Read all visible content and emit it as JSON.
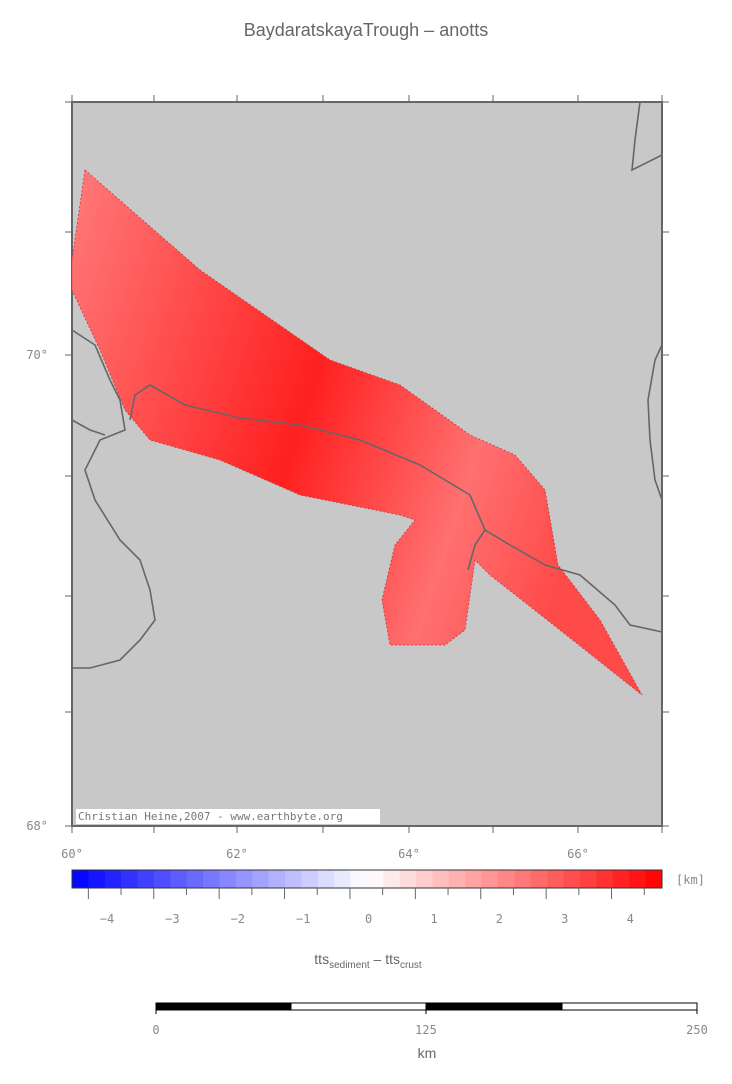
{
  "title": "BaydaratskayaTrough – anotts",
  "map": {
    "lat_labels": [
      "70°",
      "68°"
    ],
    "lon_labels": [
      "60°",
      "62°",
      "64°",
      "66°"
    ],
    "credit": "Christian Heine,2007 - www.earthbyte.org"
  },
  "colorbar": {
    "unit": "[km]",
    "tick_labels": [
      "−4",
      "−3",
      "−2",
      "−1",
      "0",
      "1",
      "2",
      "3",
      "4"
    ],
    "label": [
      {
        "text": "tts",
        "sub": "sediment"
      },
      {
        "text": " – tts",
        "sub": "crust"
      }
    ]
  },
  "scale": {
    "tick_labels": [
      "0",
      "125",
      "250"
    ],
    "unit": "km"
  }
}
